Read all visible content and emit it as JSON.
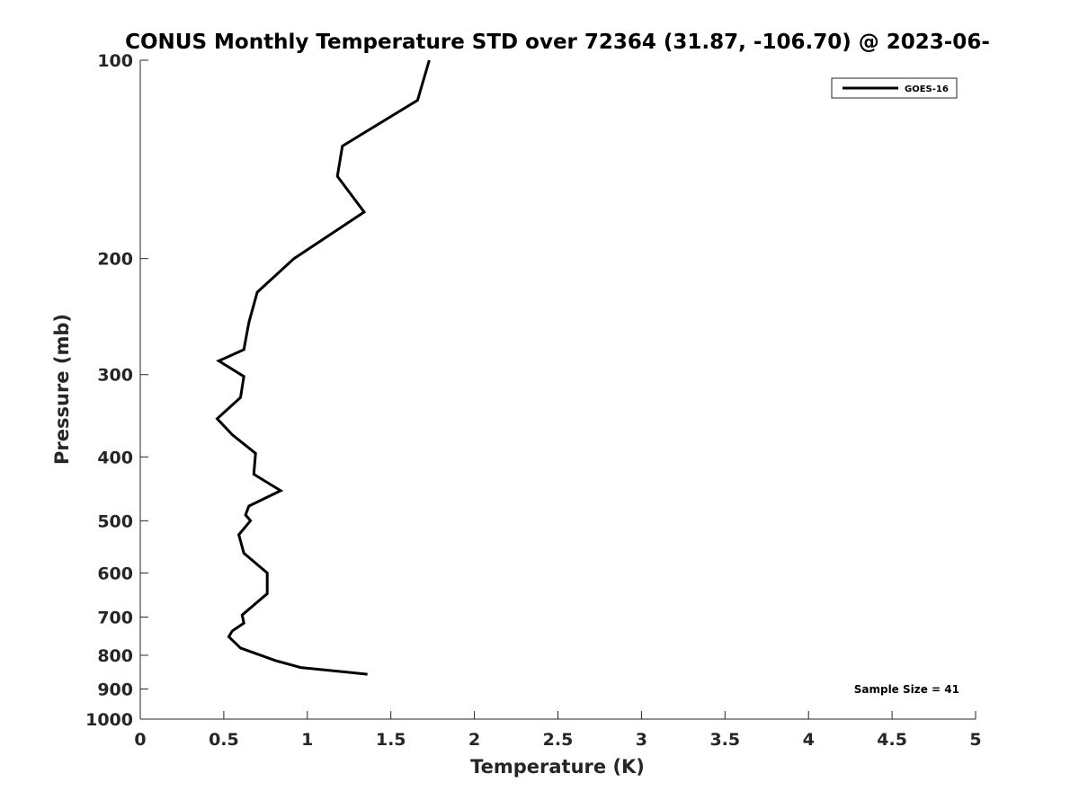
{
  "chart_data": {
    "type": "line",
    "title": "CONUS Monthly Temperature STD over 72364 (31.87, -106.70) @ 2023-06-",
    "xlabel": "Temperature (K)",
    "ylabel": "Pressure (mb)",
    "xlim": [
      0,
      5
    ],
    "ylim": [
      100,
      1000
    ],
    "y_scale": "log",
    "y_reversed": true,
    "x_ticks": [
      0,
      0.5,
      1,
      1.5,
      2,
      2.5,
      3,
      3.5,
      4,
      4.5,
      5
    ],
    "x_tick_labels": [
      "0",
      "0.5",
      "1",
      "1.5",
      "2",
      "2.5",
      "3",
      "3.5",
      "4",
      "4.5",
      "5"
    ],
    "y_ticks": [
      100,
      200,
      300,
      400,
      500,
      600,
      700,
      800,
      900,
      1000
    ],
    "y_tick_labels": [
      "100",
      "200",
      "300",
      "400",
      "500",
      "600",
      "700",
      "800",
      "900",
      "1000"
    ],
    "grid": false,
    "legend_position": "top-right",
    "annotation": "Sample Size = 41",
    "series": [
      {
        "name": "GOES-16",
        "color": "#000000",
        "points": [
          {
            "temperature_k": 1.73,
            "pressure_mb": 100
          },
          {
            "temperature_k": 1.66,
            "pressure_mb": 115
          },
          {
            "temperature_k": 1.21,
            "pressure_mb": 135
          },
          {
            "temperature_k": 1.18,
            "pressure_mb": 150
          },
          {
            "temperature_k": 1.34,
            "pressure_mb": 170
          },
          {
            "temperature_k": 0.92,
            "pressure_mb": 200
          },
          {
            "temperature_k": 0.7,
            "pressure_mb": 225
          },
          {
            "temperature_k": 0.65,
            "pressure_mb": 250
          },
          {
            "temperature_k": 0.62,
            "pressure_mb": 275
          },
          {
            "temperature_k": 0.47,
            "pressure_mb": 286
          },
          {
            "temperature_k": 0.62,
            "pressure_mb": 302
          },
          {
            "temperature_k": 0.6,
            "pressure_mb": 325
          },
          {
            "temperature_k": 0.46,
            "pressure_mb": 350
          },
          {
            "temperature_k": 0.55,
            "pressure_mb": 370
          },
          {
            "temperature_k": 0.69,
            "pressure_mb": 395
          },
          {
            "temperature_k": 0.68,
            "pressure_mb": 425
          },
          {
            "temperature_k": 0.84,
            "pressure_mb": 450
          },
          {
            "temperature_k": 0.65,
            "pressure_mb": 475
          },
          {
            "temperature_k": 0.63,
            "pressure_mb": 490
          },
          {
            "temperature_k": 0.66,
            "pressure_mb": 500
          },
          {
            "temperature_k": 0.59,
            "pressure_mb": 525
          },
          {
            "temperature_k": 0.62,
            "pressure_mb": 560
          },
          {
            "temperature_k": 0.76,
            "pressure_mb": 600
          },
          {
            "temperature_k": 0.76,
            "pressure_mb": 645
          },
          {
            "temperature_k": 0.61,
            "pressure_mb": 695
          },
          {
            "temperature_k": 0.62,
            "pressure_mb": 715
          },
          {
            "temperature_k": 0.55,
            "pressure_mb": 735
          },
          {
            "temperature_k": 0.53,
            "pressure_mb": 750
          },
          {
            "temperature_k": 0.6,
            "pressure_mb": 780
          },
          {
            "temperature_k": 0.81,
            "pressure_mb": 815
          },
          {
            "temperature_k": 0.96,
            "pressure_mb": 835
          },
          {
            "temperature_k": 1.36,
            "pressure_mb": 855
          }
        ]
      }
    ]
  }
}
